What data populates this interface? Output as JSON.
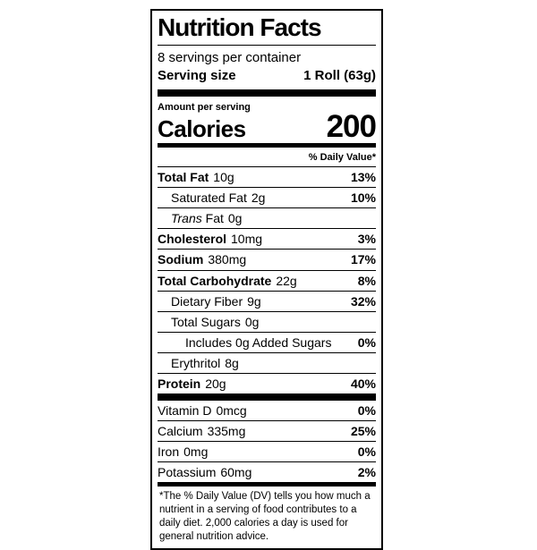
{
  "colors": {
    "ink": "#000000",
    "background": "#ffffff"
  },
  "label": {
    "title": "Nutrition Facts",
    "servings_per_container": "8 servings per container",
    "serving_size": {
      "label": "Serving size",
      "value": "1 Roll (63g)"
    },
    "amount_per_serving": "Amount per serving",
    "calories": {
      "label": "Calories",
      "value": "200"
    },
    "daily_value_header": "% Daily Value*",
    "nutrients": [
      {
        "name": "Total Fat",
        "amount": "10g",
        "dv": "13%"
      },
      {
        "name": "Saturated Fat",
        "amount": "2g",
        "dv": "10%"
      },
      {
        "name_italic": "Trans",
        "name": " Fat",
        "amount": "0g",
        "dv": ""
      },
      {
        "name": "Cholesterol",
        "amount": "10mg",
        "dv": "3%"
      },
      {
        "name": "Sodium",
        "amount": "380mg",
        "dv": "17%"
      },
      {
        "name": "Total Carbohydrate",
        "amount": "22g",
        "dv": "8%"
      },
      {
        "name": "Dietary Fiber",
        "amount": "9g",
        "dv": "32%"
      },
      {
        "name": "Total Sugars",
        "amount": "0g",
        "dv": ""
      },
      {
        "name": "Includes 0g Added Sugars",
        "amount": "",
        "dv": "0%"
      },
      {
        "name": "Erythritol",
        "amount": "8g",
        "dv": ""
      },
      {
        "name": "Protein",
        "amount": "20g",
        "dv": "40%"
      }
    ],
    "vitamins": [
      {
        "name": "Vitamin D",
        "amount": "0mcg",
        "dv": "0%"
      },
      {
        "name": "Calcium",
        "amount": "335mg",
        "dv": "25%"
      },
      {
        "name": "Iron",
        "amount": "0mg",
        "dv": "0%"
      },
      {
        "name": "Potassium",
        "amount": "60mg",
        "dv": "2%"
      }
    ],
    "footnote": "*The % Daily Value (DV) tells you how much a nutrient in a serving of food contributes to a daily diet. 2,000 calories a day is used for general nutrition advice."
  }
}
